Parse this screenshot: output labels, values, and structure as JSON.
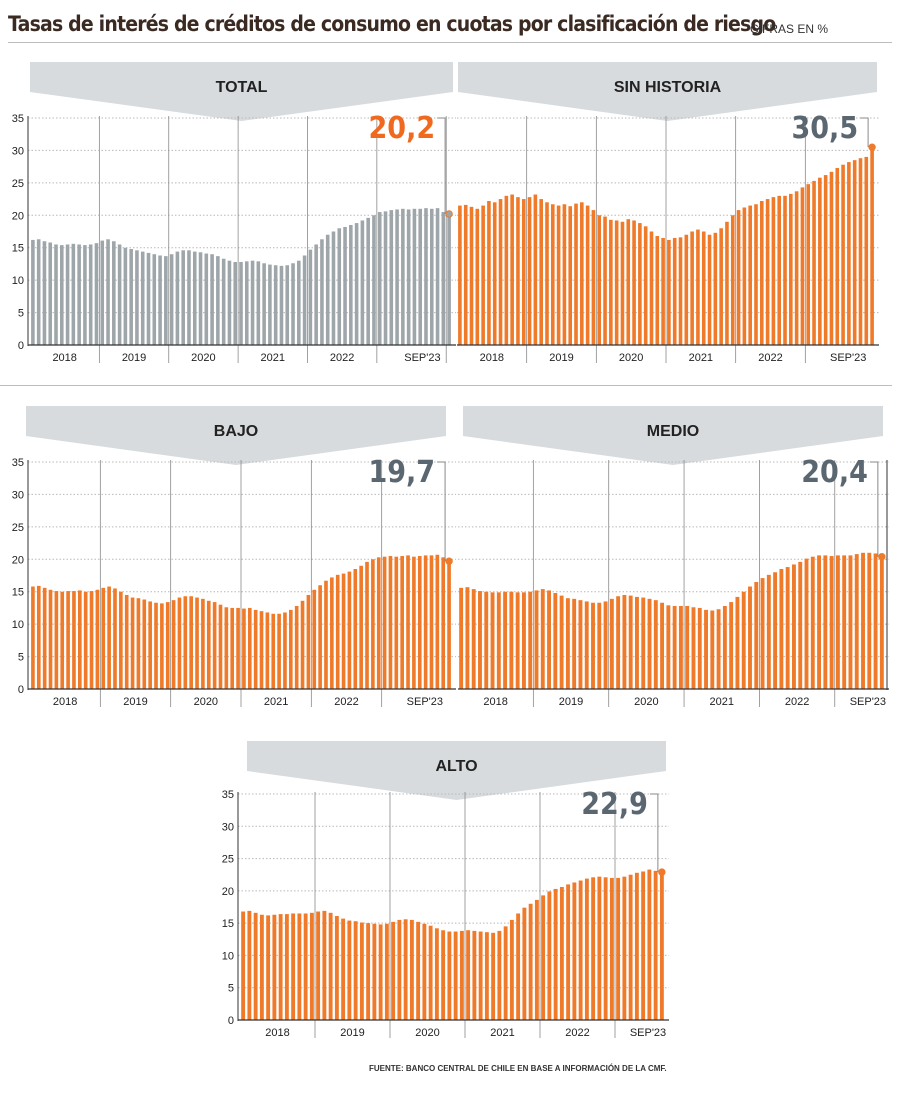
{
  "header": {
    "title": "Tasas de interés de créditos de consumo en cuotas por clasificación de riesgo",
    "unit": "CIFRAS EN %"
  },
  "source": "FUENTE: BANCO CENTRAL DE CHILE EN BASE A INFORMACIÓN DE LA CMF.",
  "colors": {
    "orange": "#ef7a2a",
    "gray": "#9ea6aa",
    "accent_value": "#ef6a1e",
    "value_gray": "#5b6770",
    "banner": "#d7dbdd"
  },
  "chart_data": [
    {
      "type": "bar",
      "title": "TOTAL",
      "bar_color": "#9ea6aa",
      "last_value_label": "20,2",
      "last_value_color": "#ef6a1e",
      "ylim": [
        0,
        35
      ],
      "yticks": [
        0,
        5,
        10,
        15,
        20,
        25,
        30,
        35
      ],
      "xtick_labels": [
        "2018",
        "2019",
        "2020",
        "2021",
        "2022",
        "SEP'23"
      ],
      "categories_note": "monthly, Jan 2018 - Sep 2023",
      "values": [
        16.2,
        16.3,
        16.0,
        15.8,
        15.5,
        15.4,
        15.5,
        15.6,
        15.5,
        15.4,
        15.5,
        15.7,
        16.1,
        16.3,
        16.0,
        15.5,
        15.0,
        14.8,
        14.6,
        14.4,
        14.2,
        14.0,
        13.8,
        13.7,
        14.0,
        14.4,
        14.6,
        14.6,
        14.4,
        14.3,
        14.1,
        14.0,
        13.7,
        13.3,
        13.0,
        12.8,
        12.8,
        12.9,
        13.0,
        12.9,
        12.6,
        12.4,
        12.3,
        12.2,
        12.3,
        12.6,
        13.0,
        13.8,
        14.7,
        15.5,
        16.3,
        17.0,
        17.5,
        18.0,
        18.2,
        18.5,
        18.8,
        19.2,
        19.6,
        20.0,
        20.5,
        20.6,
        20.8,
        20.9,
        21.0,
        20.9,
        21.0,
        21.0,
        21.1,
        21.0,
        21.1,
        20.5,
        20.2
      ]
    },
    {
      "type": "bar",
      "title": "SIN HISTORIA",
      "bar_color": "#ef7a2a",
      "last_value_label": "30,5",
      "last_value_color": "#5b6770",
      "ylim": [
        0,
        35
      ],
      "xtick_labels": [
        "2018",
        "2019",
        "2020",
        "2021",
        "2022",
        "SEP'23"
      ],
      "values": [
        21.5,
        21.6,
        21.3,
        21.0,
        21.5,
        22.2,
        22.0,
        22.5,
        23.0,
        23.2,
        22.8,
        22.5,
        22.8,
        23.2,
        22.5,
        22.0,
        21.7,
        21.5,
        21.7,
        21.4,
        21.8,
        22.0,
        21.5,
        20.8,
        20.0,
        19.8,
        19.3,
        19.2,
        19.0,
        19.4,
        19.2,
        18.8,
        18.3,
        17.5,
        16.8,
        16.5,
        16.2,
        16.5,
        16.6,
        17.0,
        17.5,
        17.8,
        17.5,
        17.0,
        17.3,
        18.0,
        19.0,
        20.0,
        20.8,
        21.2,
        21.5,
        21.7,
        22.2,
        22.5,
        22.8,
        23.0,
        23.0,
        23.3,
        23.7,
        24.3,
        24.8,
        25.3,
        25.8,
        26.2,
        26.7,
        27.3,
        27.8,
        28.2,
        28.5,
        28.8,
        29.0,
        30.5
      ]
    },
    {
      "type": "bar",
      "title": "BAJO",
      "bar_color": "#ef7a2a",
      "last_value_label": "19,7",
      "last_value_color": "#5b6770",
      "ylim": [
        0,
        35
      ],
      "xtick_labels": [
        "2018",
        "2019",
        "2020",
        "2021",
        "2022",
        "SEP'23"
      ],
      "values": [
        15.8,
        15.9,
        15.6,
        15.3,
        15.1,
        15.0,
        15.1,
        15.1,
        15.2,
        15.0,
        15.1,
        15.3,
        15.6,
        15.8,
        15.5,
        15.0,
        14.5,
        14.1,
        14.0,
        13.8,
        13.5,
        13.3,
        13.2,
        13.4,
        13.7,
        14.1,
        14.3,
        14.3,
        14.1,
        13.9,
        13.6,
        13.4,
        13.0,
        12.6,
        12.5,
        12.5,
        12.4,
        12.5,
        12.2,
        12.0,
        11.8,
        11.6,
        11.6,
        11.8,
        12.2,
        12.8,
        13.6,
        14.5,
        15.3,
        16.0,
        16.7,
        17.2,
        17.6,
        17.8,
        18.1,
        18.5,
        19.0,
        19.6,
        20.0,
        20.3,
        20.4,
        20.5,
        20.4,
        20.5,
        20.6,
        20.4,
        20.5,
        20.6,
        20.6,
        20.7,
        20.3,
        19.7
      ]
    },
    {
      "type": "bar",
      "title": "MEDIO",
      "bar_color": "#ef7a2a",
      "last_value_label": "20,4",
      "last_value_color": "#5b6770",
      "ylim": [
        0,
        35
      ],
      "xtick_labels": [
        "2018",
        "2019",
        "2020",
        "2021",
        "2022",
        "SEP'23"
      ],
      "values": [
        15.6,
        15.7,
        15.4,
        15.1,
        15.0,
        14.9,
        14.9,
        15.0,
        15.0,
        14.9,
        14.9,
        15.0,
        15.2,
        15.4,
        15.2,
        14.8,
        14.4,
        14.0,
        13.9,
        13.7,
        13.5,
        13.3,
        13.3,
        13.5,
        13.9,
        14.3,
        14.5,
        14.4,
        14.2,
        14.1,
        13.9,
        13.7,
        13.3,
        12.9,
        12.8,
        12.8,
        12.8,
        12.6,
        12.5,
        12.2,
        12.1,
        12.3,
        12.8,
        13.4,
        14.2,
        15.0,
        15.8,
        16.5,
        17.1,
        17.6,
        18.0,
        18.5,
        18.8,
        19.2,
        19.6,
        20.1,
        20.4,
        20.6,
        20.6,
        20.5,
        20.6,
        20.6,
        20.6,
        20.8,
        21.0,
        21.0,
        20.9,
        20.4
      ]
    },
    {
      "type": "bar",
      "title": "ALTO",
      "bar_color": "#ef7a2a",
      "last_value_label": "22,9",
      "last_value_color": "#5b6770",
      "ylim": [
        0,
        35
      ],
      "xtick_labels": [
        "2018",
        "2019",
        "2020",
        "2021",
        "2022",
        "SEP'23"
      ],
      "values": [
        16.8,
        16.9,
        16.6,
        16.3,
        16.2,
        16.3,
        16.4,
        16.4,
        16.5,
        16.5,
        16.5,
        16.6,
        16.8,
        16.9,
        16.6,
        16.1,
        15.7,
        15.4,
        15.3,
        15.1,
        15.0,
        14.9,
        14.8,
        14.9,
        15.2,
        15.5,
        15.6,
        15.5,
        15.2,
        14.9,
        14.6,
        14.2,
        13.9,
        13.7,
        13.7,
        13.8,
        13.9,
        13.8,
        13.7,
        13.6,
        13.5,
        13.8,
        14.5,
        15.5,
        16.5,
        17.4,
        18.0,
        18.6,
        19.3,
        19.9,
        20.3,
        20.6,
        21.0,
        21.3,
        21.6,
        21.9,
        22.1,
        22.2,
        22.1,
        22.0,
        22.0,
        22.2,
        22.5,
        22.8,
        23.0,
        23.3,
        23.1,
        22.9
      ]
    }
  ]
}
